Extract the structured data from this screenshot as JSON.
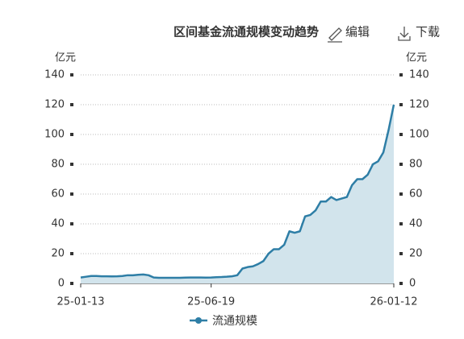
{
  "chart_data": {
    "type": "area",
    "title": "区间基金流通规模变动趋势",
    "edit": "编辑",
    "download": "下载",
    "unit": "亿元",
    "categories": [
      "25-01-13",
      null,
      null,
      null,
      null,
      null,
      null,
      null,
      null,
      null,
      null,
      null,
      null,
      null,
      null,
      null,
      null,
      null,
      null,
      null,
      null,
      null,
      null,
      null,
      null,
      "25-06-19",
      null,
      null,
      null,
      null,
      null,
      null,
      null,
      null,
      null,
      null,
      null,
      null,
      null,
      null,
      null,
      null,
      null,
      null,
      null,
      null,
      null,
      null,
      null,
      null,
      null,
      null,
      null,
      null,
      null,
      null,
      null,
      null,
      null,
      null,
      "26-01-12"
    ],
    "series": [
      {
        "name": "流通规模",
        "color": "#2e7ea6",
        "values": [
          4,
          4.5,
          5,
          5,
          4.8,
          4.8,
          4.7,
          4.8,
          5,
          5.5,
          5.5,
          5.8,
          6,
          5.5,
          4,
          3.8,
          3.8,
          3.8,
          3.8,
          3.8,
          3.9,
          4,
          4,
          4,
          3.9,
          4,
          4.2,
          4.3,
          4.5,
          4.8,
          5.5,
          10,
          11,
          11.5,
          13,
          15,
          20,
          23,
          23,
          26,
          35,
          34,
          35,
          45,
          46,
          49,
          55,
          55,
          58,
          56,
          57,
          58,
          66,
          70,
          70,
          73,
          80,
          82,
          88,
          103,
          120
        ]
      }
    ],
    "fill": "#d2e4ec",
    "ylim": [
      0,
      140
    ],
    "yticks": [
      0,
      20,
      40,
      60,
      80,
      100,
      120,
      140
    ],
    "grid": true
  }
}
